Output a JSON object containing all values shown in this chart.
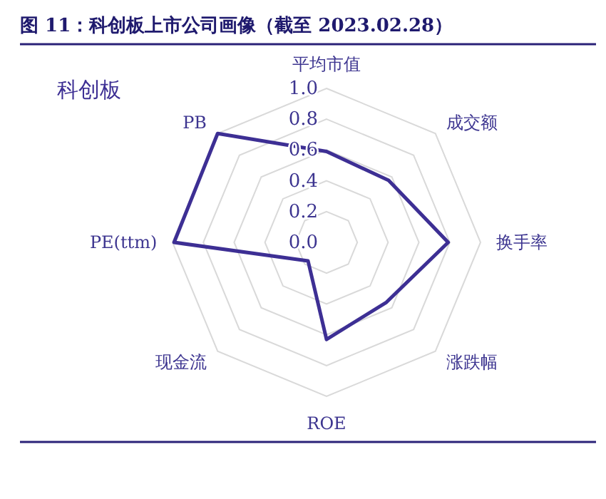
{
  "chart_data": {
    "type": "radar",
    "title": "图 11：科创板上市公司画像（截至 2023.02.28）",
    "categories": [
      "平均市值",
      "成交额",
      "换手率",
      "涨跌幅",
      "ROE",
      "现金流",
      "PE(ttm)",
      "PB"
    ],
    "series": [
      {
        "name": "科创板",
        "color": "#3d2f94",
        "values": [
          0.59,
          0.57,
          0.79,
          0.55,
          0.63,
          0.17,
          0.99,
          1.0
        ]
      }
    ],
    "ylim": [
      0,
      1
    ],
    "yticks": [
      {
        "value": 0,
        "label": "0.0"
      },
      0.2,
      0.4,
      0.6,
      0.8,
      {
        "value": 1,
        "label": "1.0"
      }
    ],
    "grid": true
  }
}
